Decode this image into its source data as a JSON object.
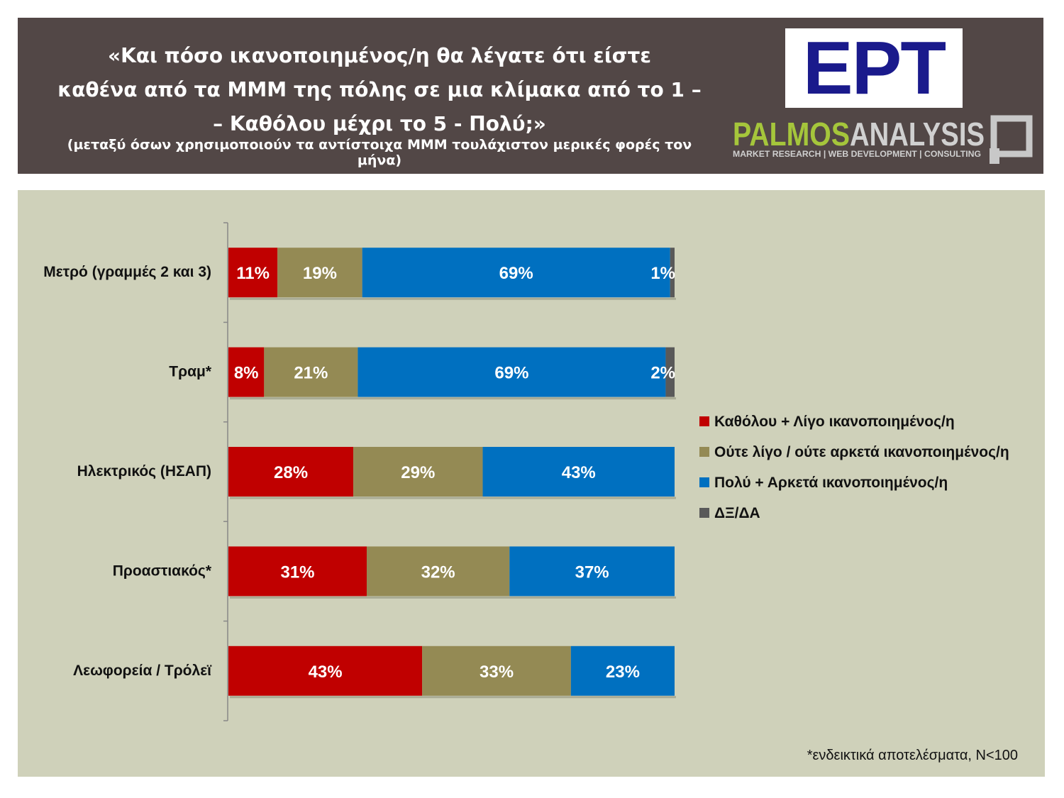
{
  "header": {
    "question": "«Και πόσο ικανοποιημένος/η θα λέγατε ότι είστε από καθένα από τα ΜΜΜ της πόλης σε μια κλίμακα από το 1 – Καθόλου μέχρι το 5 - Πολύ;»",
    "subtitle": "(μεταξύ όσων χρησιμοποιούν τα αντίστοιχα ΜΜΜ τουλάχιστον μερικές φορές τον μήνα)",
    "logo_ert": "ΕΡΤ",
    "logo_palmos": "PALMOS ANALYSIS — MARKET RESEARCH | WEB DEVELOPMENT | CONSULTING"
  },
  "chart_data": {
    "type": "bar",
    "orientation": "horizontal-stacked-100",
    "categories": [
      "Μετρό (γραμμές 2 και 3)",
      "Τραμ*",
      "Ηλεκτρικός (ΗΣΑΠ)",
      "Προαστιακός*",
      "Λεωφορεία / Τρόλεϊ"
    ],
    "series": [
      {
        "name": "Καθόλου + Λίγο ικανοποιημένος/η",
        "color": "#c00000",
        "values": [
          11,
          8,
          28,
          31,
          43
        ]
      },
      {
        "name": "Ούτε λίγο / ούτε αρκετά ικανοποιημένος/η",
        "color": "#948a54",
        "values": [
          19,
          21,
          29,
          32,
          33
        ]
      },
      {
        "name": "Πολύ + Αρκετά ικανοποιημένος/η",
        "color": "#0070c0",
        "values": [
          69,
          69,
          43,
          37,
          23
        ]
      },
      {
        "name": "ΔΞ/ΔΑ",
        "color": "#595959",
        "values": [
          1,
          2,
          0,
          0,
          0
        ]
      }
    ],
    "legend_position": "right",
    "grid": false
  },
  "footnote": "*ενδεικτικά αποτελέσματα, Ν<100"
}
